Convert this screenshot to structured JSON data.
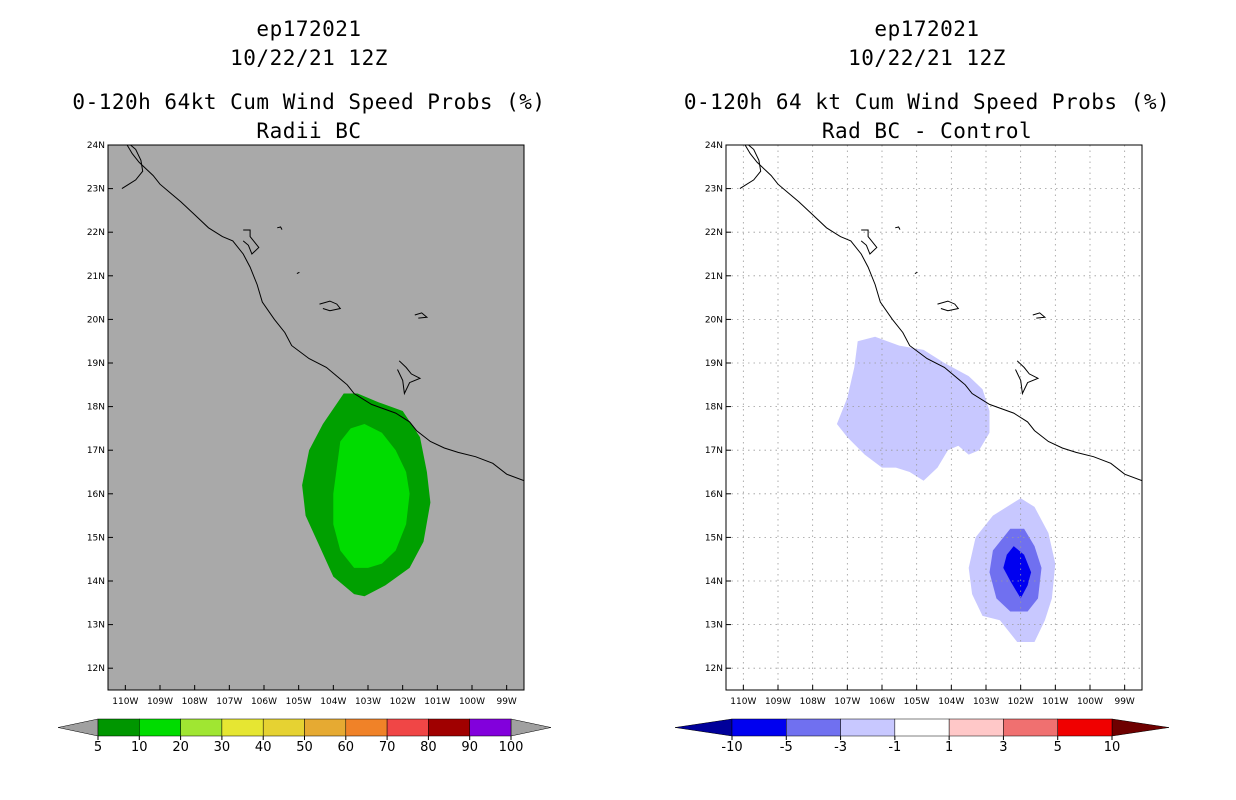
{
  "chart_data": [
    {
      "type": "contour_map",
      "storm_id": "ep172021",
      "datetime": "10/22/21 12Z",
      "title": "0-120h 64kt Cum Wind Speed Probs (%)",
      "subtitle": "Radii BC",
      "xlim": [
        -110.5,
        -98.5
      ],
      "ylim": [
        11.5,
        24
      ],
      "x_ticks": [
        "110W",
        "109W",
        "108W",
        "107W",
        "106W",
        "105W",
        "104W",
        "103W",
        "102W",
        "101W",
        "100W",
        "99W"
      ],
      "y_ticks": [
        "12N",
        "13N",
        "14N",
        "15N",
        "16N",
        "17N",
        "18N",
        "19N",
        "20N",
        "21N",
        "22N",
        "23N",
        "24N"
      ],
      "grid": false,
      "background": "#a9a9a9",
      "contours": [
        {
          "level_min": 5,
          "color": "#00a000",
          "polygon": [
            [
              -103.7,
              18.3
            ],
            [
              -103.3,
              18.3
            ],
            [
              -102.7,
              18.1
            ],
            [
              -102.0,
              17.9
            ],
            [
              -101.5,
              17.3
            ],
            [
              -101.3,
              16.5
            ],
            [
              -101.2,
              15.8
            ],
            [
              -101.4,
              14.9
            ],
            [
              -101.8,
              14.3
            ],
            [
              -102.5,
              13.9
            ],
            [
              -103.1,
              13.65
            ],
            [
              -103.4,
              13.7
            ],
            [
              -104.0,
              14.1
            ],
            [
              -104.4,
              14.8
            ],
            [
              -104.8,
              15.5
            ],
            [
              -104.9,
              16.2
            ],
            [
              -104.7,
              17.0
            ],
            [
              -104.3,
              17.6
            ]
          ]
        },
        {
          "level_min": 10,
          "color": "#00dc00",
          "polygon": [
            [
              -103.5,
              17.5
            ],
            [
              -103.1,
              17.6
            ],
            [
              -102.6,
              17.4
            ],
            [
              -102.2,
              17.0
            ],
            [
              -101.9,
              16.5
            ],
            [
              -101.8,
              16.0
            ],
            [
              -101.9,
              15.3
            ],
            [
              -102.2,
              14.7
            ],
            [
              -102.6,
              14.4
            ],
            [
              -103.0,
              14.3
            ],
            [
              -103.4,
              14.3
            ],
            [
              -103.8,
              14.7
            ],
            [
              -104.0,
              15.3
            ],
            [
              -104.0,
              16.0
            ],
            [
              -103.9,
              16.6
            ],
            [
              -103.8,
              17.2
            ]
          ]
        }
      ],
      "colorbar": {
        "labels": [
          "5",
          "10",
          "20",
          "30",
          "40",
          "50",
          "60",
          "70",
          "80",
          "90",
          "100"
        ],
        "colors": [
          "#009600",
          "#00dc00",
          "#a0e632",
          "#e6e632",
          "#e6d232",
          "#e6aa32",
          "#f08228",
          "#f04646",
          "#a00000",
          "#8200dc"
        ],
        "end_colors": [
          "#a0a0a0",
          "#a0a0a0"
        ]
      }
    },
    {
      "type": "contour_map",
      "storm_id": "ep172021",
      "datetime": "10/22/21 12Z",
      "title": "0-120h 64 kt Cum Wind Speed Probs (%)",
      "subtitle": "Rad BC - Control",
      "xlim": [
        -110.5,
        -98.5
      ],
      "ylim": [
        11.5,
        24
      ],
      "x_ticks": [
        "110W",
        "109W",
        "108W",
        "107W",
        "106W",
        "105W",
        "104W",
        "103W",
        "102W",
        "101W",
        "100W",
        "99W"
      ],
      "y_ticks": [
        "12N",
        "13N",
        "14N",
        "15N",
        "16N",
        "17N",
        "18N",
        "19N",
        "20N",
        "21N",
        "22N",
        "23N",
        "24N"
      ],
      "grid": true,
      "background": "#ffffff",
      "contours": [
        {
          "level": "-3 to -1",
          "color": "#c8c8ff",
          "polygon": [
            [
              -106.7,
              19.5
            ],
            [
              -106.2,
              19.6
            ],
            [
              -105.5,
              19.4
            ],
            [
              -104.8,
              19.3
            ],
            [
              -104.2,
              19.0
            ],
            [
              -103.5,
              18.7
            ],
            [
              -103.1,
              18.4
            ],
            [
              -102.9,
              17.9
            ],
            [
              -102.9,
              17.4
            ],
            [
              -103.2,
              17.0
            ],
            [
              -103.5,
              16.9
            ],
            [
              -103.8,
              17.1
            ],
            [
              -104.1,
              17.0
            ],
            [
              -104.4,
              16.6
            ],
            [
              -104.8,
              16.3
            ],
            [
              -105.2,
              16.5
            ],
            [
              -105.6,
              16.6
            ],
            [
              -106.0,
              16.6
            ],
            [
              -106.5,
              16.9
            ],
            [
              -107.0,
              17.3
            ],
            [
              -107.3,
              17.6
            ],
            [
              -107.0,
              18.2
            ],
            [
              -106.8,
              18.9
            ]
          ]
        },
        {
          "level": "-3 to -1",
          "color": "#c8c8ff",
          "polygon": [
            [
              -102.0,
              15.9
            ],
            [
              -101.6,
              15.7
            ],
            [
              -101.2,
              15.1
            ],
            [
              -101.0,
              14.4
            ],
            [
              -101.1,
              13.6
            ],
            [
              -101.3,
              13.1
            ],
            [
              -101.6,
              12.6
            ],
            [
              -102.1,
              12.6
            ],
            [
              -102.6,
              13.1
            ],
            [
              -103.1,
              13.2
            ],
            [
              -103.4,
              13.7
            ],
            [
              -103.5,
              14.3
            ],
            [
              -103.3,
              15.0
            ],
            [
              -102.8,
              15.5
            ]
          ]
        },
        {
          "level": "-5 to -3",
          "color": "#7070f0",
          "polygon": [
            [
              -102.3,
              15.2
            ],
            [
              -101.9,
              15.2
            ],
            [
              -101.6,
              14.8
            ],
            [
              -101.4,
              14.3
            ],
            [
              -101.5,
              13.6
            ],
            [
              -101.8,
              13.3
            ],
            [
              -102.3,
              13.3
            ],
            [
              -102.7,
              13.6
            ],
            [
              -102.9,
              14.2
            ],
            [
              -102.8,
              14.7
            ]
          ]
        },
        {
          "level": "-10 to -5",
          "color": "#0000f0",
          "polygon": [
            [
              -102.2,
              14.8
            ],
            [
              -101.9,
              14.6
            ],
            [
              -101.7,
              14.2
            ],
            [
              -101.8,
              13.9
            ],
            [
              -102.0,
              13.6
            ],
            [
              -102.3,
              14.0
            ],
            [
              -102.5,
              14.3
            ],
            [
              -102.4,
              14.6
            ]
          ]
        }
      ],
      "colorbar": {
        "labels": [
          "-10",
          "-5",
          "-3",
          "-1",
          "1",
          "3",
          "5",
          "10"
        ],
        "colors": [
          "#0000f0",
          "#7070f0",
          "#c8c8ff",
          "#ffffff",
          "#ffc8c8",
          "#f07070",
          "#f00000"
        ],
        "end_colors": [
          "#00009a",
          "#6e0000"
        ]
      }
    }
  ]
}
